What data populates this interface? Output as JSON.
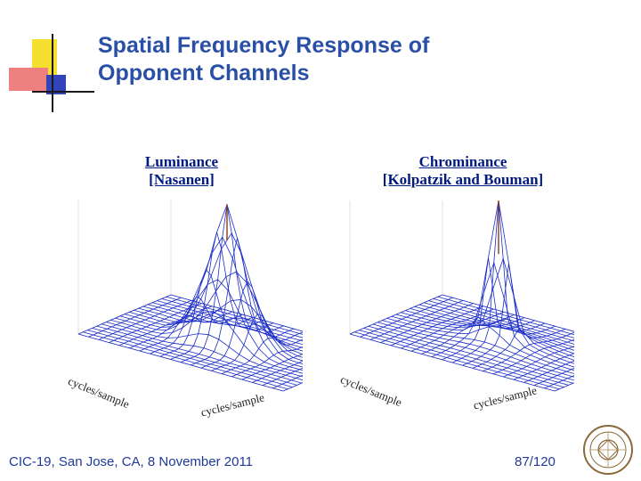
{
  "slide": {
    "title_line1": "Spatial Frequency Response of",
    "title_line2": "Opponent Channels",
    "footer_left": "CIC-19, San Jose, CA, 8 November 2011",
    "page_number": "87/120"
  },
  "panels": [
    {
      "title_line1": "Luminance",
      "title_line2": "[Nasanen]",
      "x_axis_label": "cycles/sample",
      "y_axis_label": "cycles/sample",
      "shape": "broad peak"
    },
    {
      "title_line1": "Chrominance",
      "title_line2": "[Kolpatzik and Bouman]",
      "x_axis_label": "cycles/sample",
      "y_axis_label": "cycles/sample",
      "shape": "narrow peak"
    }
  ],
  "colors": {
    "title": "#2a4fa6",
    "panel_title": "#001a80",
    "mesh": "#1a2cc8",
    "peak": "#8a3a1a",
    "accent_yellow": "#f5e030",
    "accent_red": "#e83030",
    "accent_blue": "#2233aa"
  },
  "icons": {
    "logo": "university-seal-icon"
  }
}
